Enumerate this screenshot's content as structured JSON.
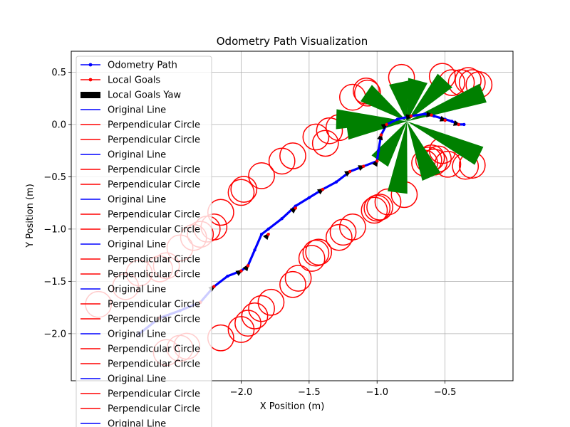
{
  "chart_data": {
    "type": "line",
    "title": "Odometry Path Visualization",
    "xlabel": "X Position (m)",
    "ylabel": "Y Position (m)",
    "xlim": [
      -3.25,
      0.0
    ],
    "ylim": [
      -2.45,
      0.7
    ],
    "xticks": [
      -2.0,
      -1.5,
      -1.0,
      -0.5
    ],
    "xtick_labels": [
      "−2.0",
      "−1.5",
      "−1.0",
      "−0.5"
    ],
    "yticks": [
      0.5,
      0.0,
      -0.5,
      -1.0,
      -1.5,
      -2.0
    ],
    "ytick_labels": [
      "0.5",
      "0.0",
      "−0.5",
      "−1.0",
      "−1.5",
      "−2.0"
    ],
    "grid": true,
    "legend_position": "upper-left",
    "colors": {
      "path": "#0000ff",
      "goals": "#ff0000",
      "yaw": "#000000",
      "fan": "#008000"
    },
    "legend": [
      {
        "label": "Odometry Path",
        "style": "line-dot",
        "color": "#0000ff"
      },
      {
        "label": "Local Goals",
        "style": "line-dot",
        "color": "#ff0000"
      },
      {
        "label": "Local Goals Yaw",
        "style": "patch",
        "color": "#000000"
      },
      {
        "label": "Original Line",
        "style": "line",
        "color": "#0000ff"
      },
      {
        "label": "Perpendicular Circle",
        "style": "line",
        "color": "#ff0000"
      },
      {
        "label": "Perpendicular Circle",
        "style": "line",
        "color": "#ff0000"
      },
      {
        "label": "Original Line",
        "style": "line",
        "color": "#0000ff"
      },
      {
        "label": "Perpendicular Circle",
        "style": "line",
        "color": "#ff0000"
      },
      {
        "label": "Perpendicular Circle",
        "style": "line",
        "color": "#ff0000"
      },
      {
        "label": "Original Line",
        "style": "line",
        "color": "#0000ff"
      },
      {
        "label": "Perpendicular Circle",
        "style": "line",
        "color": "#ff0000"
      },
      {
        "label": "Perpendicular Circle",
        "style": "line",
        "color": "#ff0000"
      },
      {
        "label": "Original Line",
        "style": "line",
        "color": "#0000ff"
      },
      {
        "label": "Perpendicular Circle",
        "style": "line",
        "color": "#ff0000"
      },
      {
        "label": "Perpendicular Circle",
        "style": "line",
        "color": "#ff0000"
      },
      {
        "label": "Original Line",
        "style": "line",
        "color": "#0000ff"
      },
      {
        "label": "Perpendicular Circle",
        "style": "line",
        "color": "#ff0000"
      },
      {
        "label": "Perpendicular Circle",
        "style": "line",
        "color": "#ff0000"
      },
      {
        "label": "Original Line",
        "style": "line",
        "color": "#0000ff"
      },
      {
        "label": "Perpendicular Circle",
        "style": "line",
        "color": "#ff0000"
      },
      {
        "label": "Perpendicular Circle",
        "style": "line",
        "color": "#ff0000"
      },
      {
        "label": "Original Line",
        "style": "line",
        "color": "#0000ff"
      },
      {
        "label": "Perpendicular Circle",
        "style": "line",
        "color": "#ff0000"
      },
      {
        "label": "Perpendicular Circle",
        "style": "line",
        "color": "#ff0000"
      },
      {
        "label": "Original Line",
        "style": "line",
        "color": "#0000ff"
      }
    ],
    "odometry_path": {
      "x": [
        -2.75,
        -2.6,
        -2.45,
        -2.3,
        -2.2,
        -2.1,
        -2.0,
        -1.95,
        -1.9,
        -1.85,
        -1.8,
        -1.7,
        -1.6,
        -1.5,
        -1.4,
        -1.3,
        -1.2,
        -1.1,
        -1.0,
        -0.99,
        -0.97,
        -0.93,
        -0.85,
        -0.75,
        -0.65,
        -0.58,
        -0.5,
        -0.45,
        -0.4,
        -0.36
      ],
      "y": [
        -2.0,
        -1.85,
        -1.78,
        -1.7,
        -1.55,
        -1.45,
        -1.4,
        -1.35,
        -1.2,
        -1.05,
        -1.0,
        -0.9,
        -0.78,
        -0.7,
        -0.62,
        -0.55,
        -0.45,
        -0.4,
        -0.35,
        -0.25,
        -0.1,
        0.0,
        0.05,
        0.08,
        0.1,
        0.08,
        0.05,
        0.03,
        0.0,
        0.0
      ]
    },
    "local_goals": {
      "x": [
        -2.6,
        -2.3,
        -2.2,
        -2.0,
        -1.95,
        -1.8,
        -1.6,
        -1.4,
        -1.2,
        -1.1,
        -1.0,
        -0.97,
        -0.93,
        -0.75,
        -0.6,
        -0.5,
        -0.4
      ],
      "y": [
        -1.85,
        -1.7,
        -1.55,
        -1.4,
        -1.35,
        -1.05,
        -0.8,
        -0.62,
        -0.45,
        -0.4,
        -0.35,
        -0.1,
        0.0,
        0.08,
        0.09,
        0.04,
        0.0
      ]
    },
    "fan_center": {
      "x": -0.78,
      "y": 0.03
    },
    "fan_tips": [
      {
        "x": -1.08,
        "y": 0.3
      },
      {
        "x": -0.84,
        "y": 0.4
      },
      {
        "x": -0.7,
        "y": 0.42
      },
      {
        "x": -0.5,
        "y": 0.42
      },
      {
        "x": -0.22,
        "y": 0.3
      },
      {
        "x": -0.25,
        "y": -0.3
      },
      {
        "x": -0.6,
        "y": -0.5
      },
      {
        "x": -0.85,
        "y": -0.65
      },
      {
        "x": -0.98,
        "y": -0.35
      },
      {
        "x": -1.22,
        "y": -0.05
      },
      {
        "x": -1.3,
        "y": 0.05
      }
    ],
    "circle_radius": 0.095,
    "circles_left": [
      {
        "x": -3.05,
        "y": -1.72
      },
      {
        "x": -2.85,
        "y": -1.55
      },
      {
        "x": -2.75,
        "y": -1.42
      },
      {
        "x": -2.6,
        "y": -1.38
      },
      {
        "x": -2.55,
        "y": -1.35
      },
      {
        "x": -2.45,
        "y": -1.18
      },
      {
        "x": -2.35,
        "y": -1.08
      },
      {
        "x": -2.3,
        "y": -1.05
      },
      {
        "x": -2.25,
        "y": -1.0
      },
      {
        "x": -2.2,
        "y": -0.98
      },
      {
        "x": -2.15,
        "y": -0.84
      },
      {
        "x": -2.0,
        "y": -0.65
      },
      {
        "x": -1.98,
        "y": -0.62
      },
      {
        "x": -1.85,
        "y": -0.49
      },
      {
        "x": -1.7,
        "y": -0.35
      },
      {
        "x": -1.62,
        "y": -0.3
      },
      {
        "x": -1.45,
        "y": -0.12
      },
      {
        "x": -1.38,
        "y": -0.18
      },
      {
        "x": -1.35,
        "y": -0.06
      },
      {
        "x": -1.28,
        "y": -0.03
      },
      {
        "x": -1.18,
        "y": 0.26
      },
      {
        "x": -1.08,
        "y": 0.32
      },
      {
        "x": -1.07,
        "y": 0.3
      }
    ],
    "circles_right": [
      {
        "x": -2.55,
        "y": -2.18
      },
      {
        "x": -2.45,
        "y": -2.14
      },
      {
        "x": -2.4,
        "y": -2.12
      },
      {
        "x": -2.15,
        "y": -2.04
      },
      {
        "x": -2.0,
        "y": -1.96
      },
      {
        "x": -1.95,
        "y": -1.9
      },
      {
        "x": -1.9,
        "y": -1.83
      },
      {
        "x": -1.85,
        "y": -1.76
      },
      {
        "x": -1.78,
        "y": -1.7
      },
      {
        "x": -1.62,
        "y": -1.53
      },
      {
        "x": -1.58,
        "y": -1.47
      },
      {
        "x": -1.48,
        "y": -1.28
      },
      {
        "x": -1.45,
        "y": -1.23
      },
      {
        "x": -1.43,
        "y": -1.22
      },
      {
        "x": -1.28,
        "y": -1.08
      },
      {
        "x": -1.25,
        "y": -1.03
      },
      {
        "x": -1.18,
        "y": -0.98
      },
      {
        "x": -1.02,
        "y": -0.82
      },
      {
        "x": -1.0,
        "y": -0.8
      },
      {
        "x": -0.98,
        "y": -0.79
      },
      {
        "x": -0.92,
        "y": -0.74
      },
      {
        "x": -0.8,
        "y": -0.67
      },
      {
        "x": -0.65,
        "y": -0.37
      },
      {
        "x": -0.62,
        "y": -0.34
      },
      {
        "x": -0.6,
        "y": -0.32
      },
      {
        "x": -0.58,
        "y": -0.36
      },
      {
        "x": -0.55,
        "y": -0.33
      },
      {
        "x": -0.52,
        "y": -0.25
      },
      {
        "x": -0.48,
        "y": -0.38
      },
      {
        "x": -0.35,
        "y": -0.4
      },
      {
        "x": -0.3,
        "y": -0.39
      },
      {
        "x": -0.82,
        "y": 0.45
      },
      {
        "x": -0.52,
        "y": 0.46
      },
      {
        "x": -0.45,
        "y": 0.4
      },
      {
        "x": -0.38,
        "y": 0.4
      },
      {
        "x": -0.33,
        "y": 0.42
      },
      {
        "x": -0.3,
        "y": 0.4
      },
      {
        "x": -0.25,
        "y": 0.38
      }
    ]
  }
}
